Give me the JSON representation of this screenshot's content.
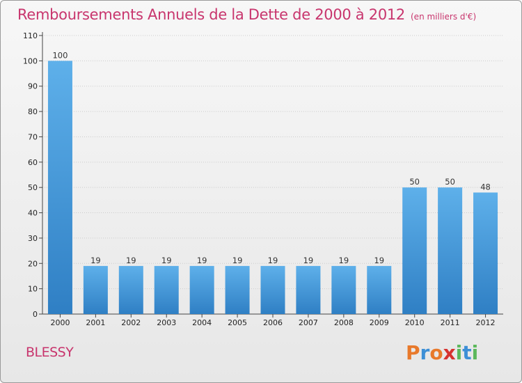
{
  "header": {
    "title": "Remboursements Annuels de la Dette de 2000 à 2012",
    "subtitle": "(en milliers d'€)"
  },
  "commune": "BLESSY",
  "logo": {
    "text": "Proxiti",
    "letters": [
      {
        "ch": "P",
        "color": "#e8792b"
      },
      {
        "ch": "r",
        "color": "#3d8fd6"
      },
      {
        "ch": "o",
        "color": "#e8792b"
      },
      {
        "ch": "x",
        "color": "#d6322f"
      },
      {
        "ch": "i",
        "color": "#5cb85c"
      },
      {
        "ch": "t",
        "color": "#3d8fd6"
      },
      {
        "ch": "i",
        "color": "#5cb85c"
      }
    ]
  },
  "colors": {
    "bar_light": "#5eb0ea",
    "bar_dark": "#2f7fc4",
    "title": "#c8356d",
    "grid": "#cccccc"
  },
  "chart_data": {
    "type": "bar",
    "categories": [
      "2000",
      "2001",
      "2002",
      "2003",
      "2004",
      "2005",
      "2006",
      "2007",
      "2008",
      "2009",
      "2010",
      "2011",
      "2012"
    ],
    "values": [
      100,
      19,
      19,
      19,
      19,
      19,
      19,
      19,
      19,
      19,
      50,
      50,
      48
    ],
    "data_labels": [
      "100",
      "19",
      "19",
      "19",
      "19",
      "19",
      "19",
      "19",
      "19",
      "19",
      "50",
      "50",
      "48"
    ],
    "title": "Remboursements Annuels de la Dette de 2000 à 2012",
    "xlabel": "",
    "ylabel": "",
    "ylim": [
      0,
      110
    ],
    "yticks": [
      0,
      10,
      20,
      30,
      40,
      50,
      60,
      70,
      80,
      90,
      100,
      110
    ],
    "grid": true
  }
}
